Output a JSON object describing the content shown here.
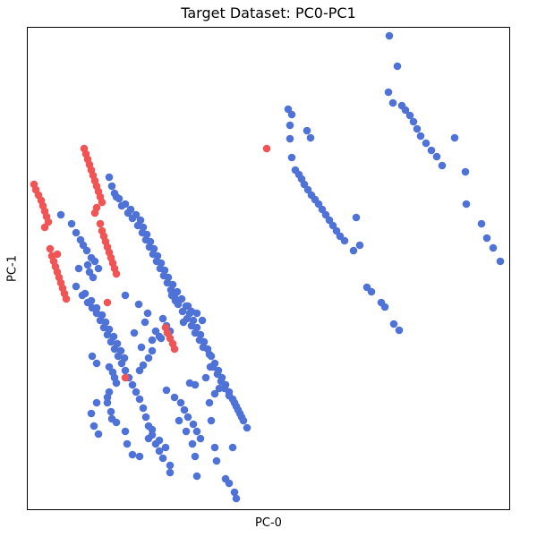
{
  "chart_data": {
    "type": "scatter",
    "title": "Target Dataset: PC0-PC1",
    "xlabel": "PC-0",
    "ylabel": "PC-1",
    "xlim": [
      0,
      540
    ],
    "ylim": [
      -540,
      0
    ],
    "grid": false,
    "ticks": "none",
    "colors": {
      "blue": "#4f72d6",
      "red": "#f05455"
    },
    "series": [
      {
        "color": "#4f72d6",
        "points": [
          [
            405,
            -10
          ],
          [
            414,
            -44
          ],
          [
            404,
            -73
          ],
          [
            409,
            -85
          ],
          [
            419,
            -88
          ],
          [
            423,
            -93
          ],
          [
            428,
            -99
          ],
          [
            432,
            -106
          ],
          [
            436,
            -114
          ],
          [
            440,
            -122
          ],
          [
            446,
            -130
          ],
          [
            452,
            -138
          ],
          [
            458,
            -145
          ],
          [
            478,
            -124
          ],
          [
            464,
            -155
          ],
          [
            490,
            -162
          ],
          [
            491,
            -198
          ],
          [
            508,
            -220
          ],
          [
            514,
            -236
          ],
          [
            521,
            -247
          ],
          [
            529,
            -262
          ],
          [
            292,
            -92
          ],
          [
            296,
            -98
          ],
          [
            294,
            -110
          ],
          [
            313,
            -116
          ],
          [
            317,
            -124
          ],
          [
            294,
            -125
          ],
          [
            296,
            -146
          ],
          [
            300,
            -160
          ],
          [
            304,
            -165
          ],
          [
            307,
            -170
          ],
          [
            310,
            -176
          ],
          [
            314,
            -182
          ],
          [
            318,
            -188
          ],
          [
            322,
            -193
          ],
          [
            326,
            -198
          ],
          [
            330,
            -204
          ],
          [
            334,
            -210
          ],
          [
            338,
            -216
          ],
          [
            342,
            -222
          ],
          [
            346,
            -228
          ],
          [
            350,
            -234
          ],
          [
            355,
            -239
          ],
          [
            368,
            -213
          ],
          [
            365,
            -250
          ],
          [
            372,
            -244
          ],
          [
            380,
            -291
          ],
          [
            385,
            -296
          ],
          [
            396,
            -308
          ],
          [
            400,
            -313
          ],
          [
            410,
            -332
          ],
          [
            416,
            -339
          ],
          [
            92,
            -168
          ],
          [
            95,
            -178
          ],
          [
            98,
            -186
          ],
          [
            103,
            -192
          ],
          [
            110,
            -198
          ],
          [
            116,
            -204
          ],
          [
            122,
            -210
          ],
          [
            127,
            -216
          ],
          [
            130,
            -224
          ],
          [
            134,
            -232
          ],
          [
            138,
            -240
          ],
          [
            142,
            -248
          ],
          [
            146,
            -256
          ],
          [
            150,
            -264
          ],
          [
            154,
            -272
          ],
          [
            158,
            -280
          ],
          [
            163,
            -288
          ],
          [
            168,
            -296
          ],
          [
            173,
            -304
          ],
          [
            178,
            -312
          ],
          [
            182,
            -320
          ],
          [
            186,
            -328
          ],
          [
            190,
            -336
          ],
          [
            194,
            -344
          ],
          [
            198,
            -352
          ],
          [
            202,
            -360
          ],
          [
            206,
            -368
          ],
          [
            210,
            -376
          ],
          [
            214,
            -384
          ],
          [
            218,
            -392
          ],
          [
            222,
            -400
          ],
          [
            226,
            -408
          ],
          [
            230,
            -416
          ],
          [
            234,
            -424
          ],
          [
            238,
            -432
          ],
          [
            242,
            -440
          ],
          [
            246,
            -448
          ],
          [
            100,
            -190
          ],
          [
            106,
            -200
          ],
          [
            113,
            -208
          ],
          [
            118,
            -214
          ],
          [
            124,
            -222
          ],
          [
            129,
            -230
          ],
          [
            133,
            -238
          ],
          [
            137,
            -246
          ],
          [
            141,
            -254
          ],
          [
            145,
            -262
          ],
          [
            149,
            -270
          ],
          [
            153,
            -278
          ],
          [
            157,
            -286
          ],
          [
            161,
            -294
          ],
          [
            165,
            -302
          ],
          [
            169,
            -310
          ],
          [
            174,
            -318
          ],
          [
            179,
            -326
          ],
          [
            184,
            -334
          ],
          [
            188,
            -342
          ],
          [
            193,
            -350
          ],
          [
            197,
            -358
          ],
          [
            204,
            -366
          ],
          [
            208,
            -380
          ],
          [
            213,
            -388
          ],
          [
            217,
            -396
          ],
          [
            221,
            -404
          ],
          [
            226,
            -412
          ],
          [
            232,
            -420
          ],
          [
            236,
            -428
          ],
          [
            240,
            -436
          ],
          [
            38,
            -210
          ],
          [
            50,
            -220
          ],
          [
            55,
            -230
          ],
          [
            60,
            -238
          ],
          [
            63,
            -244
          ],
          [
            67,
            -250
          ],
          [
            72,
            -258
          ],
          [
            76,
            -262
          ],
          [
            80,
            -270
          ],
          [
            68,
            -266
          ],
          [
            70,
            -274
          ],
          [
            74,
            -280
          ],
          [
            58,
            -270
          ],
          [
            55,
            -290
          ],
          [
            62,
            -300
          ],
          [
            68,
            -308
          ],
          [
            73,
            -314
          ],
          [
            78,
            -320
          ],
          [
            82,
            -328
          ],
          [
            86,
            -336
          ],
          [
            90,
            -344
          ],
          [
            94,
            -352
          ],
          [
            98,
            -360
          ],
          [
            102,
            -368
          ],
          [
            106,
            -376
          ],
          [
            110,
            -384
          ],
          [
            114,
            -392
          ],
          [
            118,
            -400
          ],
          [
            122,
            -408
          ],
          [
            126,
            -416
          ],
          [
            130,
            -426
          ],
          [
            133,
            -436
          ],
          [
            136,
            -446
          ],
          [
            140,
            -456
          ],
          [
            144,
            -466
          ],
          [
            148,
            -474
          ],
          [
            152,
            -482
          ],
          [
            65,
            -298
          ],
          [
            72,
            -306
          ],
          [
            78,
            -314
          ],
          [
            84,
            -322
          ],
          [
            88,
            -330
          ],
          [
            92,
            -338
          ],
          [
            97,
            -346
          ],
          [
            101,
            -354
          ],
          [
            105,
            -362
          ],
          [
            109,
            -370
          ],
          [
            110,
            -300
          ],
          [
            125,
            -310
          ],
          [
            135,
            -320
          ],
          [
            132,
            -330
          ],
          [
            120,
            -342
          ],
          [
            128,
            -358
          ],
          [
            140,
            -350
          ],
          [
            150,
            -348
          ],
          [
            160,
            -340
          ],
          [
            175,
            -330
          ],
          [
            190,
            -320
          ],
          [
            196,
            -328
          ],
          [
            73,
            -368
          ],
          [
            78,
            -376
          ],
          [
            92,
            -380
          ],
          [
            96,
            -386
          ],
          [
            98,
            -392
          ],
          [
            100,
            -398
          ],
          [
            92,
            -408
          ],
          [
            90,
            -414
          ],
          [
            90,
            -420
          ],
          [
            94,
            -430
          ],
          [
            78,
            -420
          ],
          [
            72,
            -432
          ],
          [
            75,
            -446
          ],
          [
            80,
            -455
          ],
          [
            95,
            -438
          ],
          [
            100,
            -442
          ],
          [
            110,
            -452
          ],
          [
            112,
            -466
          ],
          [
            118,
            -478
          ],
          [
            126,
            -480
          ],
          [
            136,
            -460
          ],
          [
            140,
            -450
          ],
          [
            148,
            -462
          ],
          [
            155,
            -470
          ],
          [
            160,
            -490
          ],
          [
            156,
            -406
          ],
          [
            165,
            -414
          ],
          [
            172,
            -420
          ],
          [
            176,
            -428
          ],
          [
            180,
            -436
          ],
          [
            186,
            -444
          ],
          [
            190,
            -452
          ],
          [
            194,
            -460
          ],
          [
            182,
            -398
          ],
          [
            188,
            -400
          ],
          [
            200,
            -392
          ],
          [
            205,
            -380
          ],
          [
            210,
            -410
          ],
          [
            215,
            -404
          ],
          [
            170,
            -440
          ],
          [
            178,
            -452
          ],
          [
            185,
            -466
          ],
          [
            188,
            -480
          ],
          [
            204,
            -420
          ],
          [
            206,
            -440
          ],
          [
            230,
            -470
          ],
          [
            212,
            -485
          ],
          [
            210,
            -470
          ],
          [
            160,
            -498
          ],
          [
            190,
            -502
          ],
          [
            222,
            -505
          ],
          [
            226,
            -510
          ],
          [
            232,
            -520
          ],
          [
            234,
            -527
          ],
          [
            180,
            -312
          ],
          [
            184,
            -318
          ],
          [
            162,
            -300
          ],
          [
            166,
            -306
          ],
          [
            152,
            -326
          ],
          [
            156,
            -334
          ],
          [
            144,
            -340
          ],
          [
            148,
            -346
          ],
          [
            140,
            -362
          ],
          [
            136,
            -370
          ],
          [
            130,
            -378
          ],
          [
            126,
            -384
          ]
        ]
      },
      {
        "color": "#f05455",
        "points": [
          [
            64,
            -136
          ],
          [
            66,
            -142
          ],
          [
            68,
            -148
          ],
          [
            70,
            -154
          ],
          [
            72,
            -160
          ],
          [
            74,
            -166
          ],
          [
            76,
            -172
          ],
          [
            78,
            -178
          ],
          [
            80,
            -184
          ],
          [
            82,
            -190
          ],
          [
            84,
            -196
          ],
          [
            78,
            -202
          ],
          [
            76,
            -208
          ],
          [
            8,
            -176
          ],
          [
            10,
            -182
          ],
          [
            13,
            -188
          ],
          [
            16,
            -194
          ],
          [
            18,
            -200
          ],
          [
            20,
            -206
          ],
          [
            22,
            -212
          ],
          [
            24,
            -218
          ],
          [
            20,
            -224
          ],
          [
            26,
            -248
          ],
          [
            28,
            -256
          ],
          [
            30,
            -262
          ],
          [
            32,
            -268
          ],
          [
            34,
            -274
          ],
          [
            36,
            -280
          ],
          [
            38,
            -286
          ],
          [
            40,
            -292
          ],
          [
            42,
            -298
          ],
          [
            44,
            -304
          ],
          [
            34,
            -254
          ],
          [
            82,
            -220
          ],
          [
            84,
            -228
          ],
          [
            86,
            -234
          ],
          [
            88,
            -240
          ],
          [
            90,
            -246
          ],
          [
            92,
            -252
          ],
          [
            94,
            -258
          ],
          [
            96,
            -264
          ],
          [
            98,
            -270
          ],
          [
            100,
            -276
          ],
          [
            90,
            -308
          ],
          [
            155,
            -336
          ],
          [
            157,
            -342
          ],
          [
            160,
            -348
          ],
          [
            163,
            -354
          ],
          [
            165,
            -360
          ],
          [
            268,
            -136
          ],
          [
            110,
            -392
          ]
        ]
      }
    ]
  }
}
